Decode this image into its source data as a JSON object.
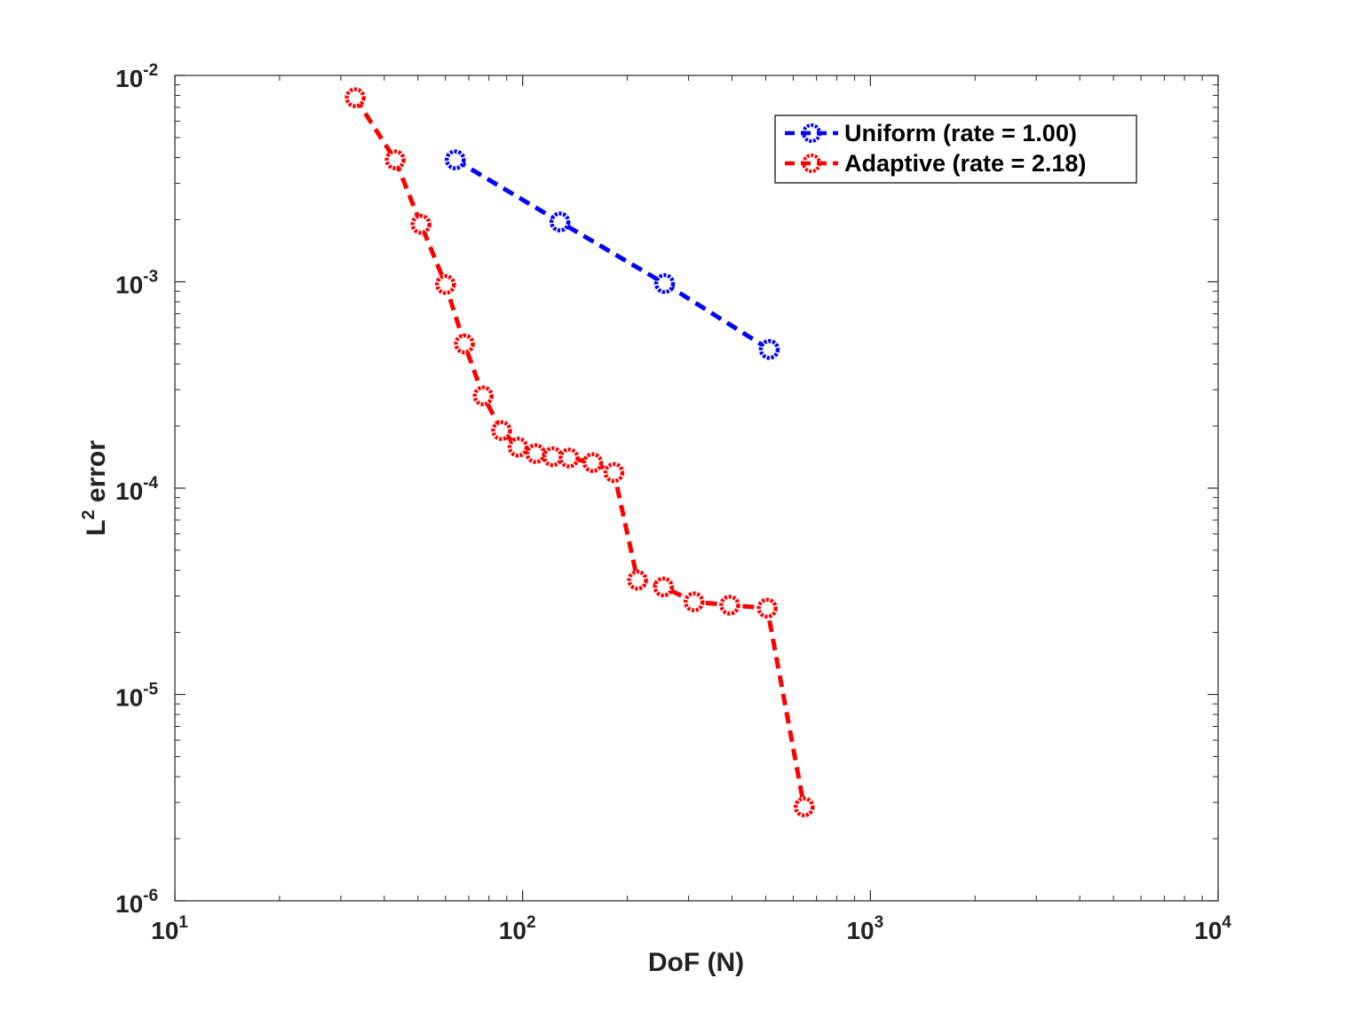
{
  "chart_data": {
    "type": "line",
    "xscale": "log",
    "yscale": "log",
    "xlim": [
      10,
      10000
    ],
    "ylim": [
      1e-06,
      0.01
    ],
    "xlabel": "DoF (N)",
    "ylabel": {
      "base": "L",
      "sup": "2",
      "rest": " error"
    },
    "grid": false,
    "legend_position": "top-right",
    "x_ticks": [
      {
        "base": "10",
        "exp": "1"
      },
      {
        "base": "10",
        "exp": "2"
      },
      {
        "base": "10",
        "exp": "3"
      },
      {
        "base": "10",
        "exp": "4"
      }
    ],
    "y_ticks": [
      {
        "base": "10",
        "exp": "-6"
      },
      {
        "base": "10",
        "exp": "-5"
      },
      {
        "base": "10",
        "exp": "-4"
      },
      {
        "base": "10",
        "exp": "-3"
      },
      {
        "base": "10",
        "exp": "-2"
      }
    ],
    "series": [
      {
        "name": "Uniform (rate = 1.00)",
        "color": "#0000ff",
        "x": [
          64,
          128,
          256,
          512
        ],
        "y": [
          0.0039,
          0.00195,
          0.00098,
          0.00047
        ]
      },
      {
        "name": "Adaptive (rate = 2.18)",
        "color": "#ff0000",
        "x": [
          33,
          43,
          51,
          60,
          68,
          77,
          87,
          97,
          109,
          122,
          136,
          159,
          183,
          214,
          254,
          311,
          394,
          505,
          645
        ],
        "y": [
          0.0078,
          0.0039,
          0.0019,
          0.00097,
          0.0005,
          0.00028,
          0.00019,
          0.000158,
          0.000147,
          0.000142,
          0.00014,
          0.000133,
          0.000119,
          3.58e-05,
          3.32e-05,
          2.81e-05,
          2.71e-05,
          2.62e-05,
          2.85e-06
        ]
      }
    ]
  }
}
